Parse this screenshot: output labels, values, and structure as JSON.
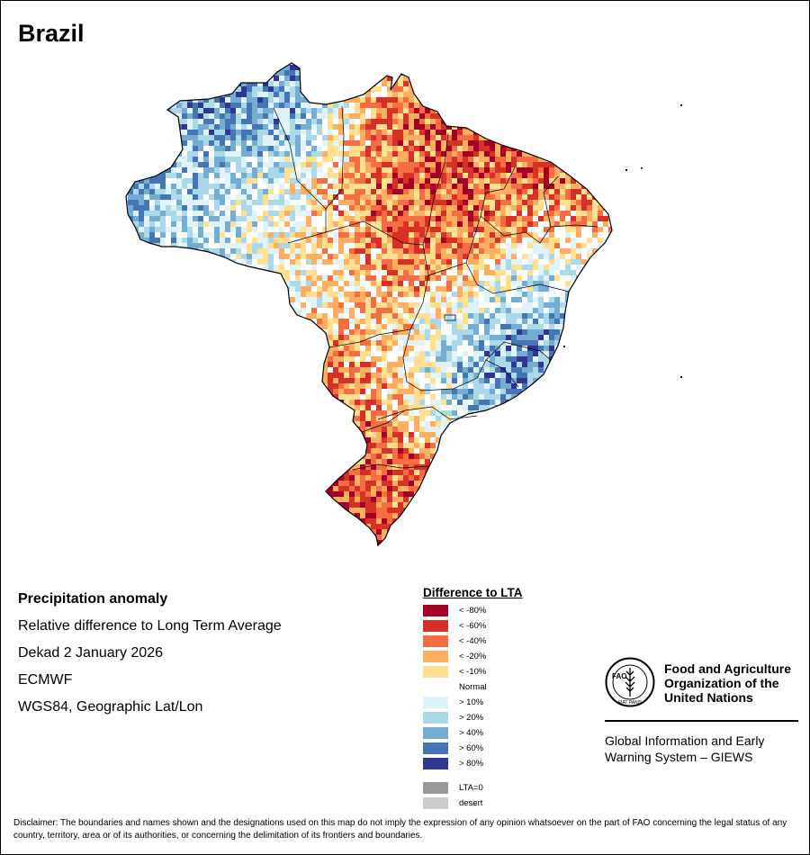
{
  "map": {
    "title": "Brazil",
    "projection": "WGS84, Geographic Lat/Lon"
  },
  "info": {
    "heading": "Precipitation anomaly",
    "subtitle": "Relative difference to Long Term Average",
    "period": "Dekad 2 January 2026",
    "source": "ECMWF"
  },
  "legend": {
    "title": "Difference to LTA",
    "classes": [
      {
        "label": "< -80%",
        "color": "#a50026"
      },
      {
        "label": "< -60%",
        "color": "#d73027"
      },
      {
        "label": "< -40%",
        "color": "#f46d43"
      },
      {
        "label": "< -20%",
        "color": "#fdae61"
      },
      {
        "label": "< -10%",
        "color": "#fee090"
      },
      {
        "label": "Normal",
        "color": "#ffffff"
      },
      {
        "label": "> 10%",
        "color": "#e0f3f8"
      },
      {
        "label": "> 20%",
        "color": "#abd9e9"
      },
      {
        "label": "> 40%",
        "color": "#74add1"
      },
      {
        "label": "> 60%",
        "color": "#4575b4"
      },
      {
        "label": "> 80%",
        "color": "#313695"
      }
    ],
    "special": [
      {
        "label": "LTA=0",
        "color": "#999999"
      },
      {
        "label": "desert",
        "color": "#cccccc"
      }
    ]
  },
  "organization": {
    "name_lines": [
      "Food and Agriculture",
      "Organization of the",
      "United Nations"
    ],
    "emblem_text": "FAO",
    "emblem_motto": "FIAT PANIS",
    "system_lines": [
      "Global Information and Early",
      "Warning System – GIEWS"
    ]
  },
  "disclaimer": "Disclaimer: The boundaries and names shown and the designations used on this map do not imply the expression of any opinion whatsoever on the part of FAO concerning the legal status of any country, territory, area or of its authorities, or concerning the delimitation of its frontiers and boundaries."
}
